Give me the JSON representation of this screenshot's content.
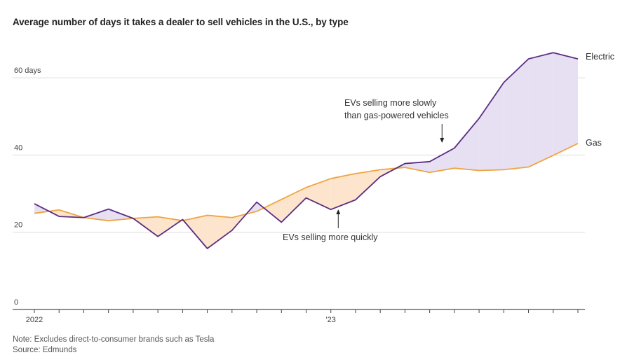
{
  "title": "Average number of days it takes a dealer to sell vehicles in the U.S., by type",
  "note": "Note: Excludes direct-to-consumer brands such as Tesla",
  "source": "Source: Edmunds",
  "colors": {
    "electric": "#5b2d82",
    "gas": "#f0a441",
    "fill_ev_faster": "#fde4cc",
    "fill_ev_slower": "#e7e0f3",
    "grid": "#dddddd"
  },
  "chart_data": {
    "type": "line",
    "title": "Average number of days it takes a dealer to sell vehicles in the U.S., by type",
    "xlabel": "",
    "ylabel": "",
    "ylim": [
      0,
      70
    ],
    "yticks": [
      {
        "value": 0,
        "label": "0"
      },
      {
        "value": 20,
        "label": "20"
      },
      {
        "value": 40,
        "label": "40"
      },
      {
        "value": 60,
        "label": "60 days"
      }
    ],
    "xticks": [
      {
        "index": 0,
        "label": "2022"
      },
      {
        "index": 12,
        "label": "'23"
      }
    ],
    "x": [
      "2022-01",
      "2022-02",
      "2022-03",
      "2022-04",
      "2022-05",
      "2022-06",
      "2022-07",
      "2022-08",
      "2022-09",
      "2022-10",
      "2022-11",
      "2022-12",
      "2023-01",
      "2023-02",
      "2023-03",
      "2023-04",
      "2023-05",
      "2023-06",
      "2023-07",
      "2023-08",
      "2023-09",
      "2023-10",
      "2023-11"
    ],
    "series": [
      {
        "name": "Electric",
        "values": [
          27.4,
          24.1,
          23.8,
          26.0,
          23.6,
          18.9,
          23.3,
          15.8,
          20.5,
          27.8,
          22.6,
          28.9,
          25.9,
          28.4,
          34.4,
          37.8,
          38.3,
          41.8,
          49.5,
          58.8,
          64.9,
          66.5,
          64.9
        ]
      },
      {
        "name": "Gas",
        "values": [
          24.9,
          25.8,
          23.8,
          23.0,
          23.6,
          24.0,
          23.0,
          24.4,
          23.8,
          25.4,
          28.5,
          31.6,
          33.9,
          35.2,
          36.2,
          36.8,
          35.5,
          36.6,
          36.0,
          36.2,
          36.9,
          39.9,
          43.0
        ]
      }
    ],
    "annotations": [
      {
        "id": "slow",
        "lines": [
          "EVs selling more slowly",
          "than gas-powered vehicles"
        ],
        "index": 16.5
      },
      {
        "id": "quick",
        "lines": [
          "EVs selling more quickly"
        ],
        "index": 12.3
      }
    ]
  }
}
